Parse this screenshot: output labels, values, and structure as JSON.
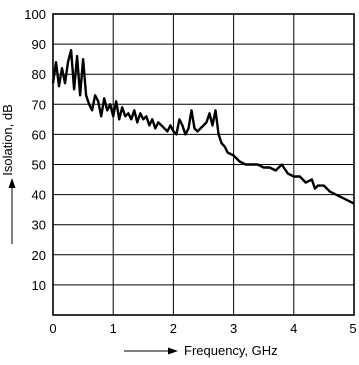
{
  "chart_data": {
    "type": "line",
    "title": "",
    "xlabel": "Frequency, GHz",
    "ylabel": "Isolation, dB",
    "xlim": [
      0,
      5
    ],
    "ylim": [
      0,
      100
    ],
    "xticks": [
      "0",
      "1",
      "2",
      "3",
      "4",
      "5"
    ],
    "yticks": [
      "10",
      "20",
      "30",
      "40",
      "50",
      "60",
      "70",
      "80",
      "90",
      "100"
    ],
    "grid": true,
    "legend": "none",
    "line_color": "#000000",
    "series": [
      {
        "x": [
          0.0,
          0.05,
          0.1,
          0.15,
          0.2,
          0.25,
          0.3,
          0.35,
          0.4,
          0.45,
          0.5,
          0.55,
          0.6,
          0.65,
          0.7,
          0.75,
          0.8,
          0.85,
          0.9,
          0.95,
          1.0,
          1.05,
          1.1,
          1.15,
          1.2,
          1.25,
          1.3,
          1.35,
          1.4,
          1.45,
          1.5,
          1.55,
          1.6,
          1.65,
          1.7,
          1.75,
          1.8,
          1.85,
          1.9,
          1.95,
          2.0,
          2.05,
          2.1,
          2.15,
          2.2,
          2.25,
          2.3,
          2.35,
          2.4,
          2.45,
          2.5,
          2.55,
          2.6,
          2.65,
          2.7,
          2.75,
          2.8,
          2.85,
          2.9,
          3.0,
          3.1,
          3.2,
          3.3,
          3.4,
          3.5,
          3.6,
          3.7,
          3.8,
          3.9,
          4.0,
          4.1,
          4.2,
          4.3,
          4.35,
          4.4,
          4.5,
          4.6,
          4.7,
          4.8,
          4.9,
          5.0
        ],
        "y": [
          77,
          84,
          76,
          82,
          77,
          84,
          88,
          75,
          86,
          73,
          85,
          73,
          70,
          68,
          73,
          71,
          66,
          72,
          68,
          70,
          66,
          71,
          65,
          69,
          66,
          67,
          65,
          68,
          64,
          67,
          65,
          66,
          63,
          65,
          62,
          64,
          63,
          62,
          61,
          63,
          61,
          60,
          65,
          63,
          60,
          62,
          68,
          62,
          61,
          62,
          63,
          64,
          67,
          63,
          68,
          60,
          57,
          56,
          54,
          53,
          51,
          50,
          50,
          50,
          49,
          49,
          48,
          50,
          47,
          46,
          46,
          44,
          45,
          42,
          43,
          43,
          41,
          40,
          39,
          38,
          37
        ]
      }
    ]
  }
}
